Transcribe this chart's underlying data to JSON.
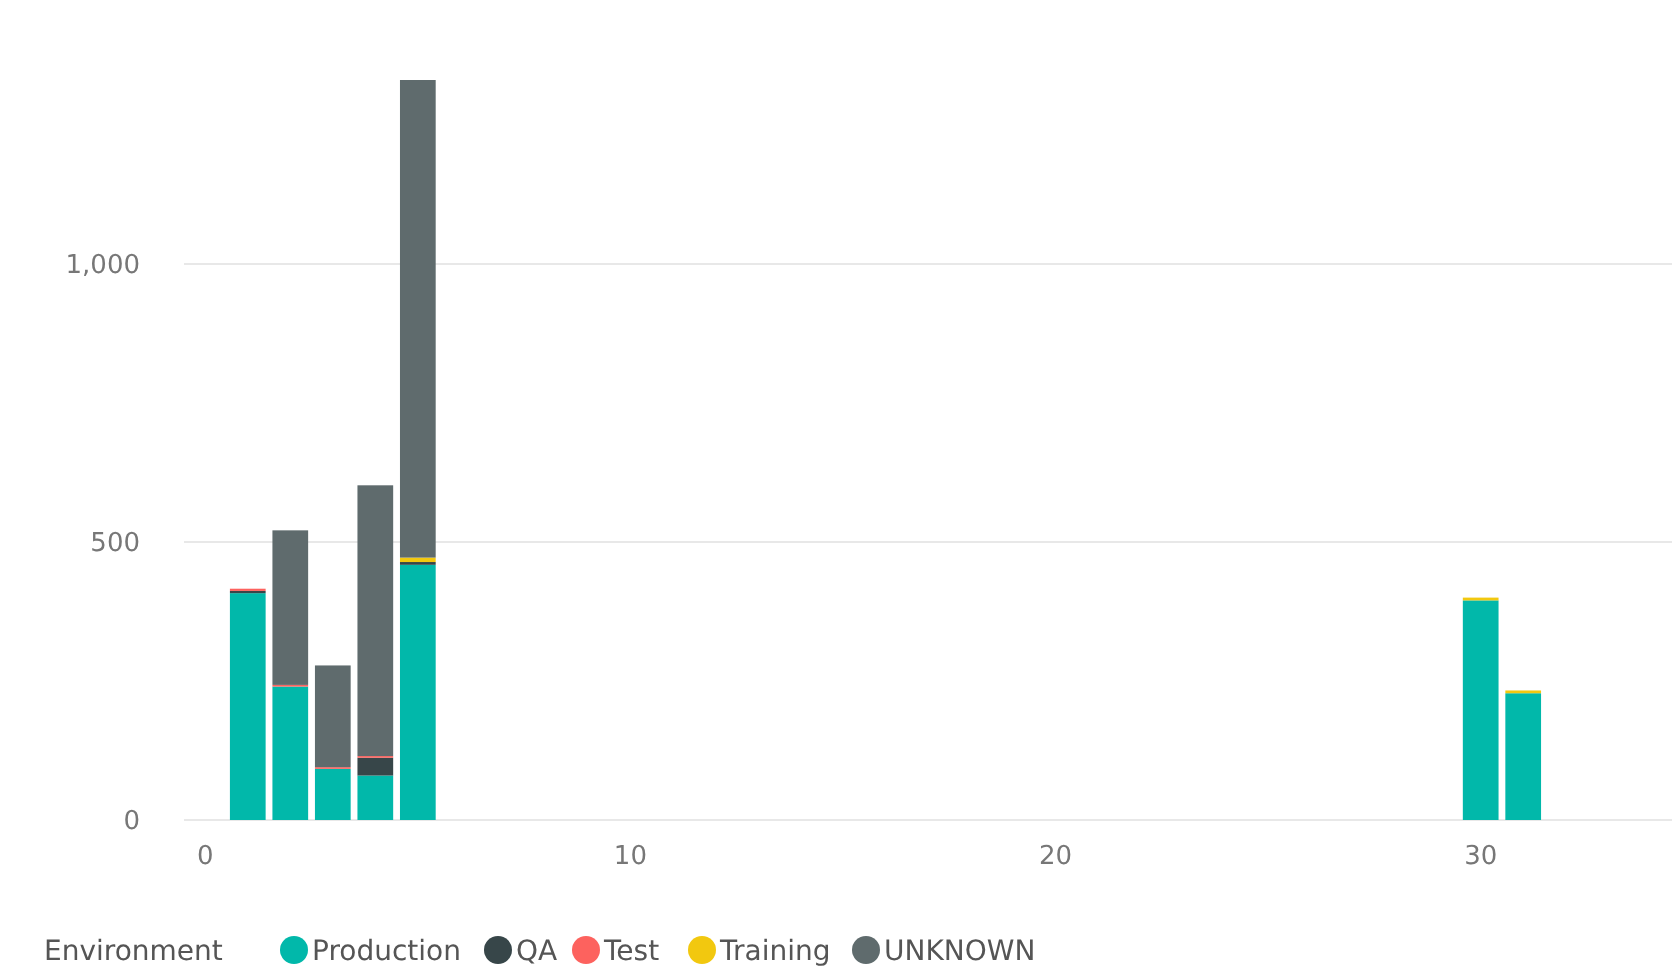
{
  "chart_data": {
    "type": "bar",
    "stacked": true,
    "x": [
      1,
      2,
      3,
      4,
      5,
      30,
      31
    ],
    "series": [
      {
        "name": "Production",
        "color": "#01b8aa",
        "values": [
          408,
          240,
          92,
          80,
          459,
          395,
          228
        ]
      },
      {
        "name": "QA",
        "color": "#374649",
        "values": [
          4,
          null,
          null,
          32,
          5,
          null,
          null
        ]
      },
      {
        "name": "Test",
        "color": "#fd625e",
        "values": [
          4,
          3,
          3,
          3,
          null,
          null,
          null
        ]
      },
      {
        "name": "Training",
        "color": "#f2c80f",
        "values": [
          null,
          null,
          null,
          null,
          8,
          5,
          5
        ]
      },
      {
        "name": "UNKNOWN",
        "color": "#5f6b6d",
        "values": [
          null,
          278,
          183,
          487,
          859,
          null,
          null
        ]
      }
    ],
    "xlim": [
      -0.5,
      34.5
    ],
    "xticks": [
      0,
      10,
      20,
      30
    ],
    "ylim": [
      0,
      1331
    ],
    "yticks": [
      0,
      500,
      {
        "value": 1000,
        "label": "1,000"
      }
    ],
    "grid": "y",
    "legend": "bottom",
    "legend_title": "Environment"
  }
}
